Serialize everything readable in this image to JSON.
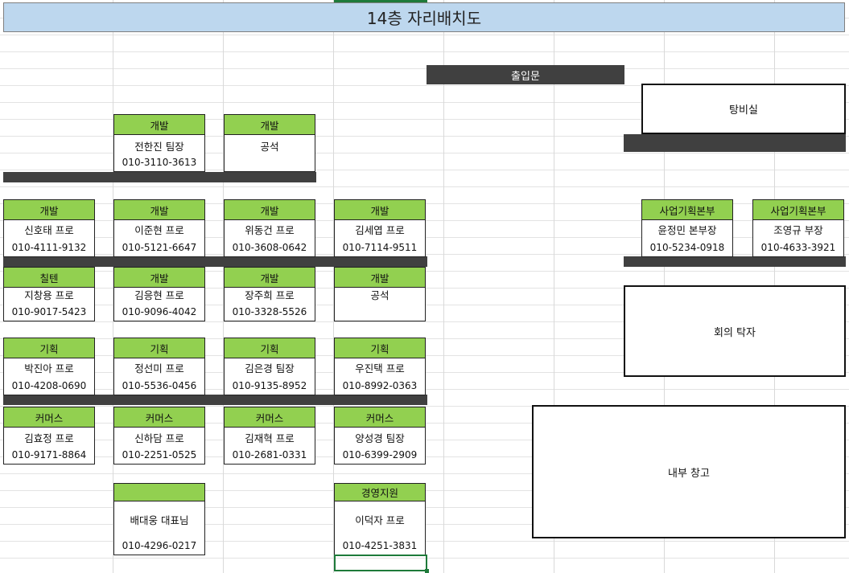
{
  "title": "14층 자리배치도",
  "entrance": "출입문",
  "rooms": {
    "pantry": "탕비실",
    "meeting_table": "회의 탁자",
    "storage": "내부 창고"
  },
  "desks": [
    {
      "dept": "개발",
      "name": "전한진 팀장",
      "phone": "010-3110-3613"
    },
    {
      "dept": "개발",
      "name": "공석",
      "phone": ""
    },
    {
      "dept": "개발",
      "name": "신호태 프로",
      "phone": "010-4111-9132"
    },
    {
      "dept": "개발",
      "name": "이준현 프로",
      "phone": "010-5121-6647"
    },
    {
      "dept": "개발",
      "name": "위동건 프로",
      "phone": "010-3608-0642"
    },
    {
      "dept": "개발",
      "name": "김세엽 프로",
      "phone": "010-7114-9511"
    },
    {
      "dept": "칠텐",
      "name": "지창용 프로",
      "phone": "010-9017-5423"
    },
    {
      "dept": "개발",
      "name": "김응현 프로",
      "phone": "010-9096-4042"
    },
    {
      "dept": "개발",
      "name": "장주희 프로",
      "phone": "010-3328-5526"
    },
    {
      "dept": "개발",
      "name": "공석",
      "phone": ""
    },
    {
      "dept": "기획",
      "name": "박진아 프로",
      "phone": "010-4208-0690"
    },
    {
      "dept": "기획",
      "name": "정선미 프로",
      "phone": "010-5536-0456"
    },
    {
      "dept": "기획",
      "name": "김은경 팀장",
      "phone": "010-9135-8952"
    },
    {
      "dept": "기획",
      "name": "우진택 프로",
      "phone": "010-8992-0363"
    },
    {
      "dept": "커머스",
      "name": "김효정 프로",
      "phone": "010-9171-8864"
    },
    {
      "dept": "커머스",
      "name": "신하담 프로",
      "phone": "010-2251-0525"
    },
    {
      "dept": "커머스",
      "name": "김재혁 프로",
      "phone": "010-2681-0331"
    },
    {
      "dept": "커머스",
      "name": "양성경 팀장",
      "phone": "010-6399-2909"
    },
    {
      "dept": "",
      "name": "배대웅 대표님",
      "phone": "010-4296-0217"
    },
    {
      "dept": "경영지원",
      "name": "이덕자 프로",
      "phone": "010-4251-3831"
    },
    {
      "dept": "사업기획본부",
      "name": "윤정민 본부장",
      "phone": "010-5234-0918"
    },
    {
      "dept": "사업기획본부",
      "name": "조영규 부장",
      "phone": "010-4633-3921"
    }
  ]
}
